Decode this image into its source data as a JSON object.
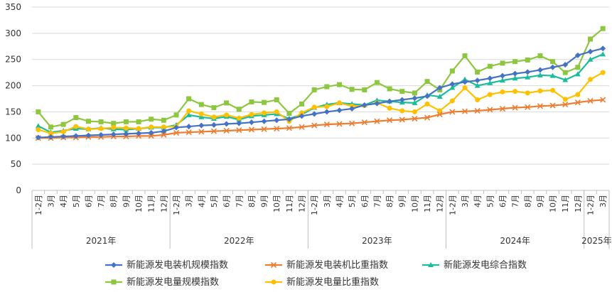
{
  "chart_data": {
    "type": "line",
    "title": "",
    "xlabel": "",
    "ylabel": "",
    "ylim": [
      0,
      350
    ],
    "yticks": [
      0,
      50,
      100,
      150,
      200,
      250,
      300,
      350
    ],
    "grid": "horizontal",
    "legend_position": "bottom",
    "categories": [
      "1-2月",
      "3月",
      "4月",
      "5月",
      "6月",
      "7月",
      "8月",
      "9月",
      "10月",
      "11月",
      "12月",
      "1-2月",
      "3月",
      "4月",
      "5月",
      "6月",
      "7月",
      "8月",
      "9月",
      "10月",
      "11月",
      "12月",
      "1-2月",
      "3月",
      "4月",
      "5月",
      "6月",
      "7月",
      "8月",
      "9月",
      "10月",
      "11月",
      "12月",
      "1-2月",
      "3月",
      "4月",
      "5月",
      "6月",
      "7月",
      "8月",
      "9月",
      "10月",
      "11月",
      "12月",
      "1-2月",
      "3月"
    ],
    "year_groups": [
      {
        "label": "2021年",
        "start": 0,
        "count": 11
      },
      {
        "label": "2022年",
        "start": 11,
        "count": 11
      },
      {
        "label": "2023年",
        "start": 22,
        "count": 11
      },
      {
        "label": "2024年",
        "start": 33,
        "count": 11
      },
      {
        "label": "2025年",
        "start": 44,
        "count": 2
      }
    ],
    "series": [
      {
        "name": "新能源发电装机规模指数",
        "color": "#4472C4",
        "marker": "diamond",
        "values": [
          101,
          102,
          103,
          104,
          105,
          106,
          107,
          108,
          109,
          110,
          113,
          120,
          122,
          124,
          125,
          127,
          128,
          130,
          132,
          134,
          136,
          142,
          146,
          150,
          153,
          156,
          163,
          166,
          170,
          173,
          176,
          180,
          196,
          203,
          207,
          210,
          214,
          219,
          223,
          226,
          230,
          235,
          240,
          258,
          265,
          271
        ]
      },
      {
        "name": "新能源发电装机比重指数",
        "color": "#ED7D31",
        "marker": "x",
        "values": [
          100,
          100,
          101,
          101,
          102,
          102,
          103,
          103,
          104,
          104,
          106,
          110,
          111,
          112,
          113,
          114,
          115,
          116,
          117,
          118,
          119,
          121,
          124,
          126,
          127,
          128,
          130,
          132,
          134,
          135,
          137,
          139,
          145,
          150,
          151,
          152,
          154,
          156,
          158,
          159,
          161,
          162,
          164,
          168,
          171,
          173
        ]
      },
      {
        "name": "新能源发电综合指数",
        "color": "#1ABC9C",
        "marker": "triangle",
        "values": [
          123,
          111,
          114,
          118,
          117,
          119,
          117,
          116,
          118,
          120,
          120,
          125,
          144,
          140,
          137,
          141,
          135,
          142,
          144,
          146,
          137,
          145,
          158,
          164,
          167,
          165,
          163,
          172,
          170,
          168,
          167,
          182,
          179,
          196,
          212,
          200,
          205,
          210,
          214,
          216,
          220,
          219,
          211,
          222,
          250,
          260
        ]
      },
      {
        "name": "新能源发电量规模指数",
        "color": "#8DC63F",
        "marker": "square",
        "values": [
          150,
          121,
          126,
          139,
          132,
          131,
          128,
          131,
          131,
          136,
          134,
          144,
          175,
          164,
          158,
          167,
          155,
          169,
          168,
          173,
          147,
          165,
          192,
          198,
          202,
          193,
          192,
          206,
          194,
          189,
          186,
          208,
          192,
          228,
          257,
          226,
          237,
          243,
          246,
          249,
          257,
          246,
          225,
          235,
          289,
          309
        ]
      },
      {
        "name": "新能源发电量比重指数",
        "color": "#FFC000",
        "marker": "circle",
        "values": [
          116,
          109,
          112,
          122,
          117,
          118,
          120,
          119,
          118,
          121,
          121,
          122,
          152,
          146,
          140,
          144,
          138,
          145,
          148,
          150,
          132,
          148,
          159,
          160,
          167,
          161,
          162,
          167,
          157,
          152,
          150,
          165,
          152,
          171,
          196,
          173,
          183,
          188,
          189,
          186,
          190,
          191,
          174,
          183,
          212,
          225
        ]
      }
    ]
  }
}
